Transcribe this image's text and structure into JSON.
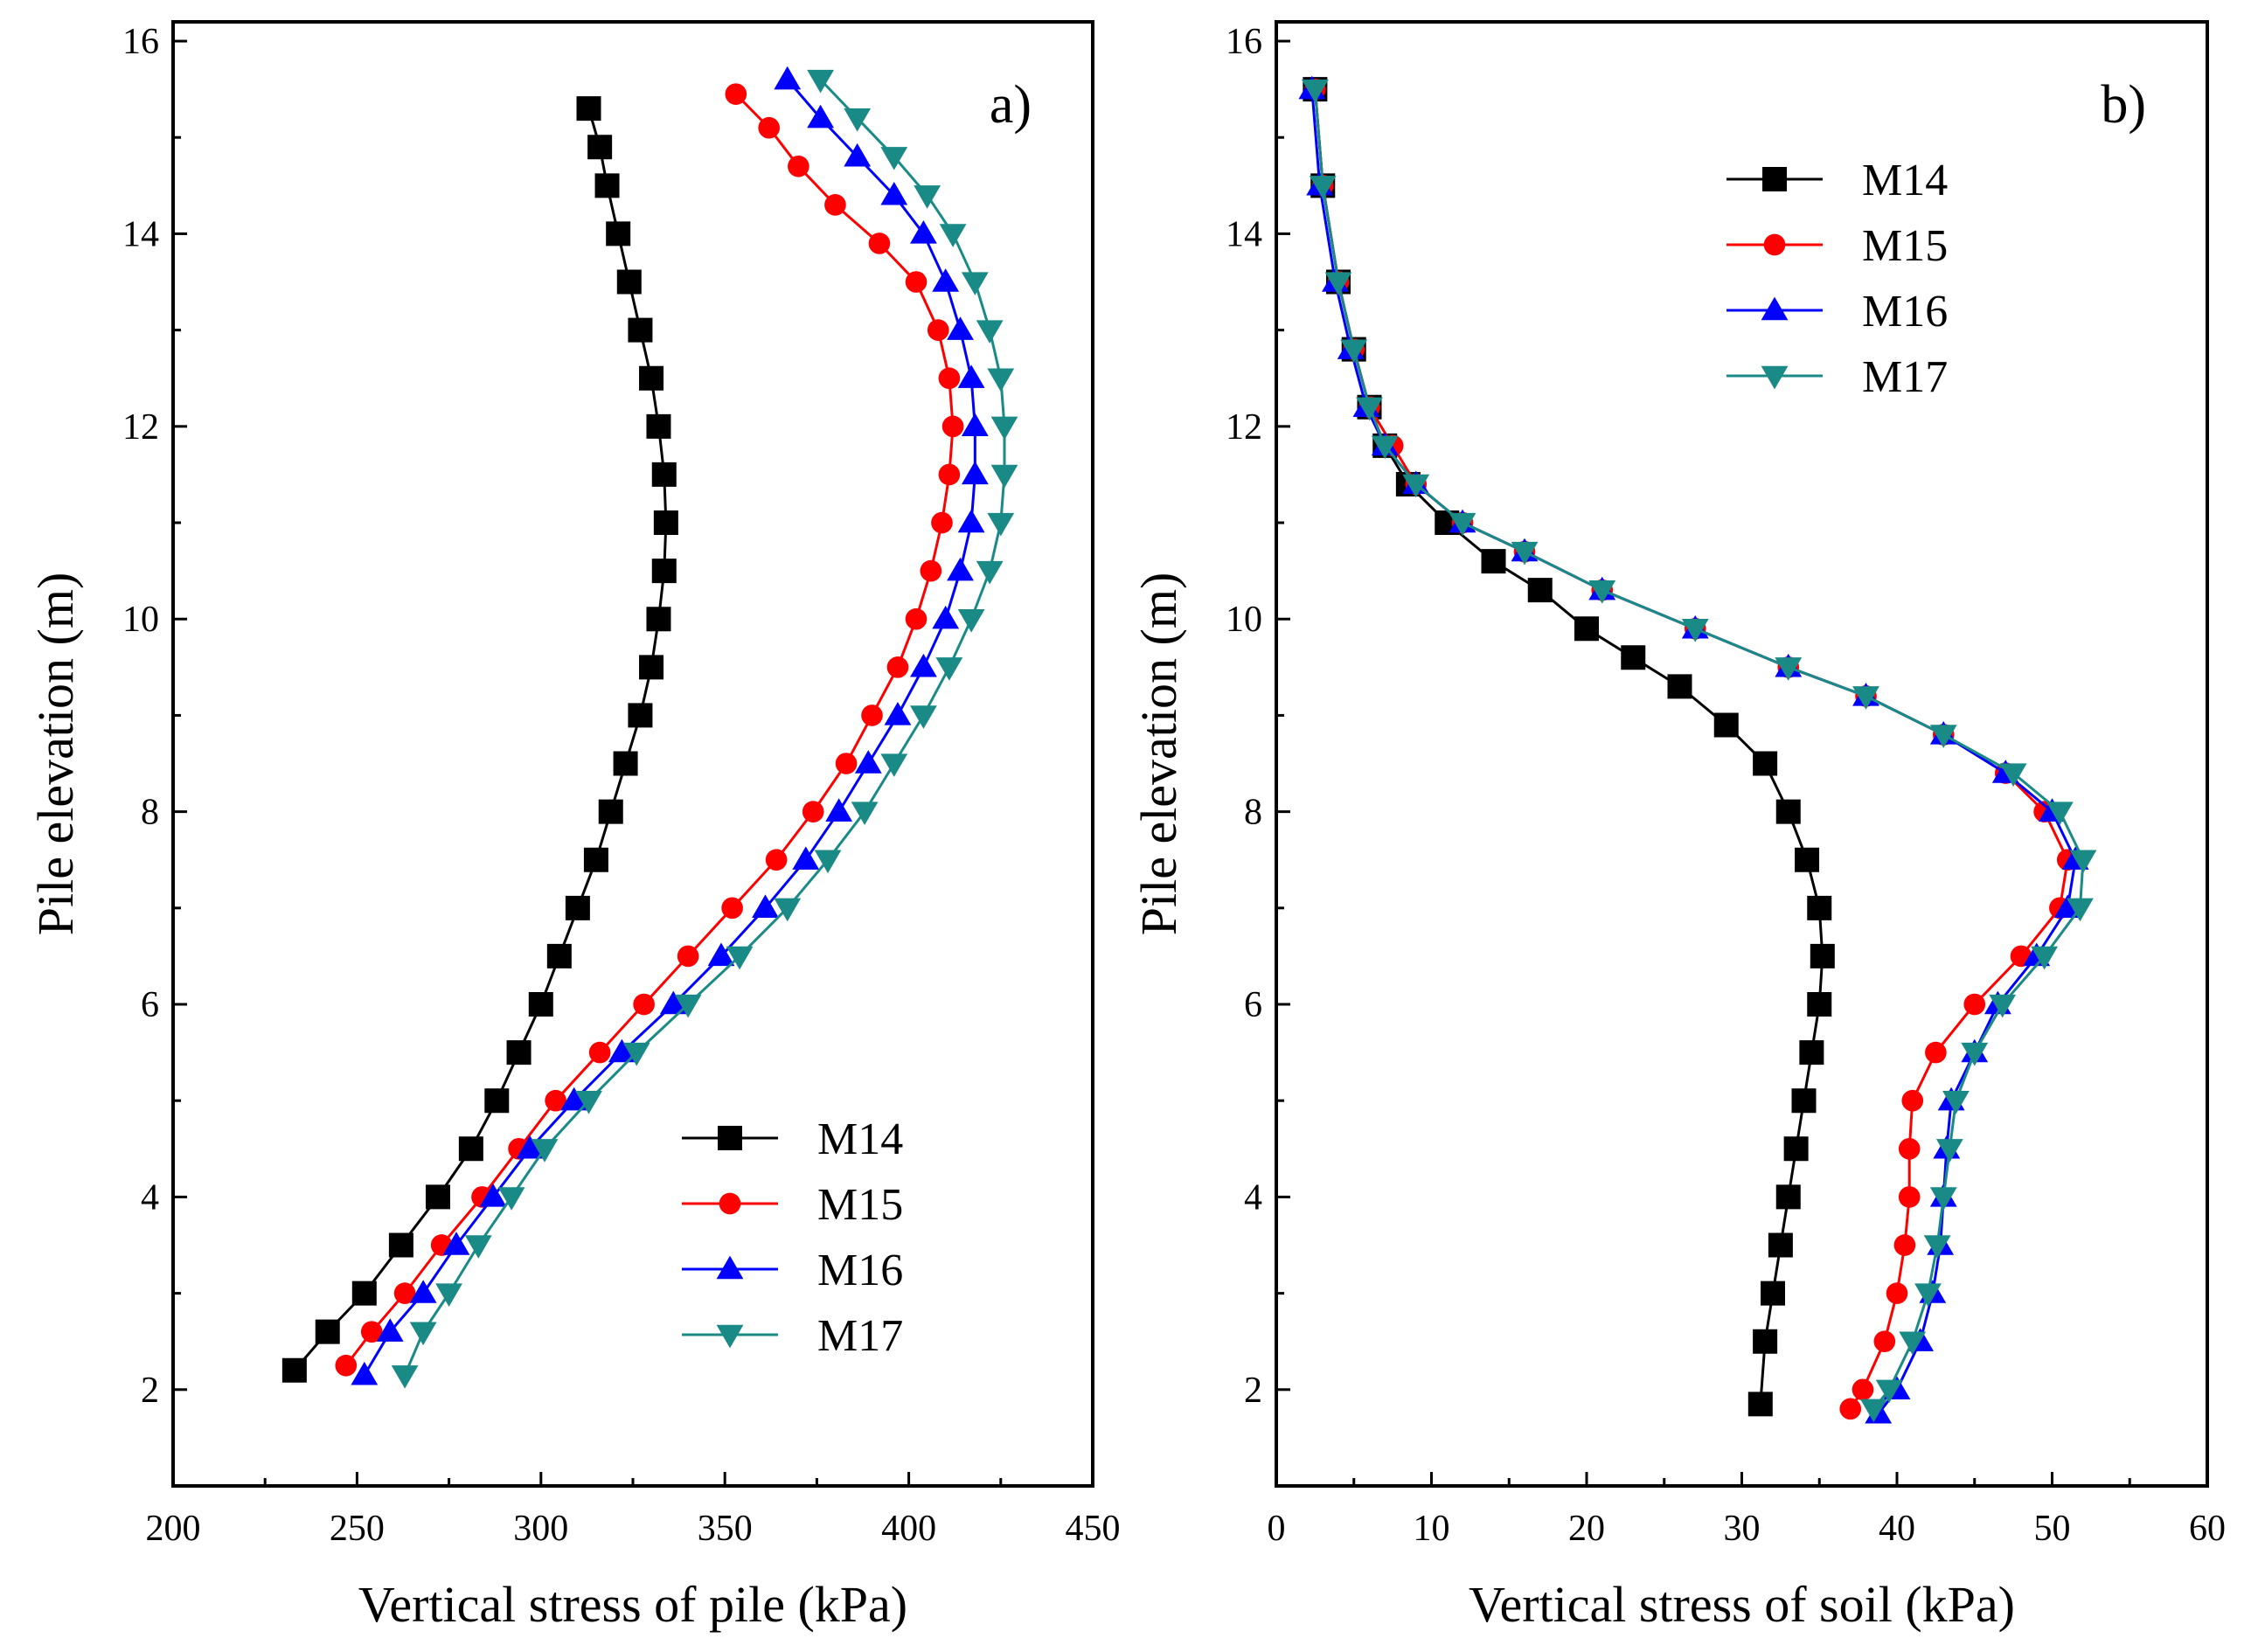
{
  "chart_data": [
    {
      "type": "line",
      "panel_label": "a)",
      "xlabel": "Vertical stress of pile (kPa)",
      "ylabel": "Pile elevation (m)",
      "xlim": [
        200,
        450
      ],
      "ylim": [
        1,
        16.2
      ],
      "xticks": [
        200,
        250,
        300,
        350,
        400,
        450
      ],
      "xtick_labels": [
        "200",
        "250",
        "300",
        "350",
        "400",
        "450"
      ],
      "yticks": [
        2,
        4,
        6,
        8,
        10,
        12,
        14,
        16
      ],
      "ytick_labels": [
        "2",
        "4",
        "6",
        "8",
        "10",
        "12",
        "14",
        "16"
      ],
      "legend_position": "bottom-right",
      "series": [
        {
          "name": "M14",
          "color": "#000000",
          "marker": "square",
          "points": [
            [
              313,
              15.3
            ],
            [
              316,
              14.9
            ],
            [
              318,
              14.5
            ],
            [
              321,
              14.0
            ],
            [
              324,
              13.5
            ],
            [
              327,
              13.0
            ],
            [
              330,
              12.5
            ],
            [
              332,
              12.0
            ],
            [
              333.5,
              11.5
            ],
            [
              334,
              11.0
            ],
            [
              333.5,
              10.5
            ],
            [
              332,
              10.0
            ],
            [
              330,
              9.5
            ],
            [
              327,
              9.0
            ],
            [
              323,
              8.5
            ],
            [
              319,
              8.0
            ],
            [
              315,
              7.5
            ],
            [
              310,
              7.0
            ],
            [
              305,
              6.5
            ],
            [
              300,
              6.0
            ],
            [
              294,
              5.5
            ],
            [
              288,
              5.0
            ],
            [
              281,
              4.5
            ],
            [
              272,
              4.0
            ],
            [
              262,
              3.5
            ],
            [
              252,
              3.0
            ],
            [
              242,
              2.6
            ],
            [
              233,
              2.2
            ]
          ]
        },
        {
          "name": "M15",
          "color": "#ff0000",
          "marker": "circle",
          "points": [
            [
              353,
              15.45
            ],
            [
              362,
              15.1
            ],
            [
              370,
              14.7
            ],
            [
              380,
              14.3
            ],
            [
              392,
              13.9
            ],
            [
              402,
              13.5
            ],
            [
              408,
              13.0
            ],
            [
              411,
              12.5
            ],
            [
              412,
              12.0
            ],
            [
              411,
              11.5
            ],
            [
              409,
              11.0
            ],
            [
              406,
              10.5
            ],
            [
              402,
              10.0
            ],
            [
              397,
              9.5
            ],
            [
              390,
              9.0
            ],
            [
              383,
              8.5
            ],
            [
              374,
              8.0
            ],
            [
              364,
              7.5
            ],
            [
              352,
              7.0
            ],
            [
              340,
              6.5
            ],
            [
              328,
              6.0
            ],
            [
              316,
              5.5
            ],
            [
              304,
              5.0
            ],
            [
              294,
              4.5
            ],
            [
              284,
              4.0
            ],
            [
              273,
              3.5
            ],
            [
              263,
              3.0
            ],
            [
              254,
              2.6
            ],
            [
              247,
              2.25
            ]
          ]
        },
        {
          "name": "M16",
          "color": "#0000ff",
          "marker": "triangle-up",
          "points": [
            [
              367,
              15.6
            ],
            [
              376,
              15.2
            ],
            [
              386,
              14.8
            ],
            [
              396,
              14.4
            ],
            [
              404,
              14.0
            ],
            [
              410,
              13.5
            ],
            [
              414,
              13.0
            ],
            [
              417,
              12.5
            ],
            [
              418,
              12.0
            ],
            [
              418,
              11.5
            ],
            [
              417,
              11.0
            ],
            [
              414,
              10.5
            ],
            [
              410,
              10.0
            ],
            [
              404,
              9.5
            ],
            [
              397,
              9.0
            ],
            [
              389,
              8.5
            ],
            [
              381,
              8.0
            ],
            [
              372,
              7.5
            ],
            [
              361,
              7.0
            ],
            [
              349,
              6.5
            ],
            [
              336,
              6.0
            ],
            [
              322,
              5.5
            ],
            [
              309,
              5.0
            ],
            [
              297,
              4.5
            ],
            [
              287,
              4.0
            ],
            [
              277,
              3.5
            ],
            [
              268,
              3.0
            ],
            [
              259,
              2.6
            ],
            [
              252,
              2.15
            ]
          ]
        },
        {
          "name": "M17",
          "color": "#1a8a86",
          "marker": "triangle-down",
          "points": [
            [
              376,
              15.6
            ],
            [
              386,
              15.2
            ],
            [
              396,
              14.8
            ],
            [
              405,
              14.4
            ],
            [
              412,
              14.0
            ],
            [
              418,
              13.5
            ],
            [
              422,
              13.0
            ],
            [
              425,
              12.5
            ],
            [
              426,
              12.0
            ],
            [
              426,
              11.5
            ],
            [
              425,
              11.0
            ],
            [
              422,
              10.5
            ],
            [
              417,
              10.0
            ],
            [
              411,
              9.5
            ],
            [
              404,
              9.0
            ],
            [
              396,
              8.5
            ],
            [
              388,
              8.0
            ],
            [
              378,
              7.5
            ],
            [
              367,
              7.0
            ],
            [
              354,
              6.5
            ],
            [
              340,
              6.0
            ],
            [
              326,
              5.5
            ],
            [
              313,
              5.0
            ],
            [
              301,
              4.5
            ],
            [
              292,
              4.0
            ],
            [
              283,
              3.5
            ],
            [
              275,
              3.0
            ],
            [
              268,
              2.6
            ],
            [
              263,
              2.15
            ]
          ]
        }
      ]
    },
    {
      "type": "line",
      "panel_label": "b)",
      "xlabel": "Vertical stress of soil (kPa)",
      "ylabel": "Pile elevation (m)",
      "xlim": [
        0,
        60
      ],
      "ylim": [
        1,
        16.2
      ],
      "xticks": [
        0,
        10,
        20,
        30,
        40,
        50,
        60
      ],
      "xtick_labels": [
        "0",
        "10",
        "20",
        "30",
        "40",
        "50",
        "60"
      ],
      "yticks": [
        2,
        4,
        6,
        8,
        10,
        12,
        14,
        16
      ],
      "ytick_labels": [
        "2",
        "4",
        "6",
        "8",
        "10",
        "12",
        "14",
        "16"
      ],
      "legend_position": "top-center",
      "series": [
        {
          "name": "M14",
          "color": "#000000",
          "marker": "square",
          "points": [
            [
              2.5,
              15.5
            ],
            [
              3.0,
              14.5
            ],
            [
              4.0,
              13.5
            ],
            [
              5.0,
              12.8
            ],
            [
              6.0,
              12.2
            ],
            [
              7.0,
              11.8
            ],
            [
              8.5,
              11.4
            ],
            [
              11,
              11.0
            ],
            [
              14,
              10.6
            ],
            [
              17,
              10.3
            ],
            [
              20,
              9.9
            ],
            [
              23,
              9.6
            ],
            [
              26,
              9.3
            ],
            [
              29,
              8.9
            ],
            [
              31.5,
              8.5
            ],
            [
              33,
              8.0
            ],
            [
              34.2,
              7.5
            ],
            [
              35,
              7.0
            ],
            [
              35.2,
              6.5
            ],
            [
              35,
              6.0
            ],
            [
              34.5,
              5.5
            ],
            [
              34,
              5.0
            ],
            [
              33.5,
              4.5
            ],
            [
              33,
              4.0
            ],
            [
              32.5,
              3.5
            ],
            [
              32,
              3.0
            ],
            [
              31.5,
              2.5
            ],
            [
              31.2,
              1.85
            ]
          ]
        },
        {
          "name": "M15",
          "color": "#ff0000",
          "marker": "circle",
          "points": [
            [
              2.5,
              15.5
            ],
            [
              3.0,
              14.5
            ],
            [
              4.0,
              13.5
            ],
            [
              5.0,
              12.8
            ],
            [
              6.0,
              12.2
            ],
            [
              7.5,
              11.8
            ],
            [
              9,
              11.4
            ],
            [
              12,
              11.0
            ],
            [
              16,
              10.7
            ],
            [
              21,
              10.3
            ],
            [
              27,
              9.9
            ],
            [
              33,
              9.5
            ],
            [
              38,
              9.2
            ],
            [
              43,
              8.8
            ],
            [
              47,
              8.4
            ],
            [
              49.5,
              8.0
            ],
            [
              51,
              7.5
            ],
            [
              50.5,
              7.0
            ],
            [
              48,
              6.5
            ],
            [
              45,
              6.0
            ],
            [
              42.5,
              5.5
            ],
            [
              41,
              5.0
            ],
            [
              40.8,
              4.5
            ],
            [
              40.8,
              4.0
            ],
            [
              40.5,
              3.5
            ],
            [
              40,
              3.0
            ],
            [
              39.2,
              2.5
            ],
            [
              37.8,
              2.0
            ],
            [
              37,
              1.8
            ]
          ]
        },
        {
          "name": "M16",
          "color": "#0000ff",
          "marker": "triangle-up",
          "points": [
            [
              2.3,
              15.5
            ],
            [
              2.8,
              14.5
            ],
            [
              3.8,
              13.5
            ],
            [
              4.8,
              12.8
            ],
            [
              5.8,
              12.2
            ],
            [
              7,
              11.8
            ],
            [
              9,
              11.4
            ],
            [
              12,
              11.0
            ],
            [
              16,
              10.7
            ],
            [
              21,
              10.3
            ],
            [
              27,
              9.9
            ],
            [
              33,
              9.5
            ],
            [
              38,
              9.2
            ],
            [
              43,
              8.8
            ],
            [
              47,
              8.4
            ],
            [
              50,
              8.0
            ],
            [
              51.5,
              7.5
            ],
            [
              51,
              7.0
            ],
            [
              49,
              6.5
            ],
            [
              46.5,
              6.0
            ],
            [
              45,
              5.5
            ],
            [
              43.5,
              5.0
            ],
            [
              43.2,
              4.5
            ],
            [
              43,
              4.0
            ],
            [
              42.8,
              3.5
            ],
            [
              42.3,
              3.0
            ],
            [
              41.5,
              2.5
            ],
            [
              40,
              2.0
            ],
            [
              38.8,
              1.75
            ]
          ]
        },
        {
          "name": "M17",
          "color": "#1a8a86",
          "marker": "triangle-down",
          "points": [
            [
              2.5,
              15.5
            ],
            [
              3.0,
              14.5
            ],
            [
              4.0,
              13.5
            ],
            [
              5.0,
              12.8
            ],
            [
              6.0,
              12.2
            ],
            [
              7,
              11.8
            ],
            [
              9,
              11.4
            ],
            [
              12,
              11.0
            ],
            [
              16,
              10.7
            ],
            [
              21,
              10.3
            ],
            [
              27,
              9.9
            ],
            [
              33,
              9.5
            ],
            [
              38,
              9.2
            ],
            [
              43,
              8.8
            ],
            [
              47.5,
              8.4
            ],
            [
              50.5,
              8.0
            ],
            [
              52,
              7.5
            ],
            [
              51.8,
              7.0
            ],
            [
              49.5,
              6.5
            ],
            [
              46.8,
              6.0
            ],
            [
              45,
              5.5
            ],
            [
              43.8,
              5.0
            ],
            [
              43.4,
              4.5
            ],
            [
              43,
              4.0
            ],
            [
              42.6,
              3.5
            ],
            [
              42,
              3.0
            ],
            [
              41,
              2.5
            ],
            [
              39.5,
              2.0
            ],
            [
              38.5,
              1.8
            ]
          ]
        }
      ]
    }
  ]
}
